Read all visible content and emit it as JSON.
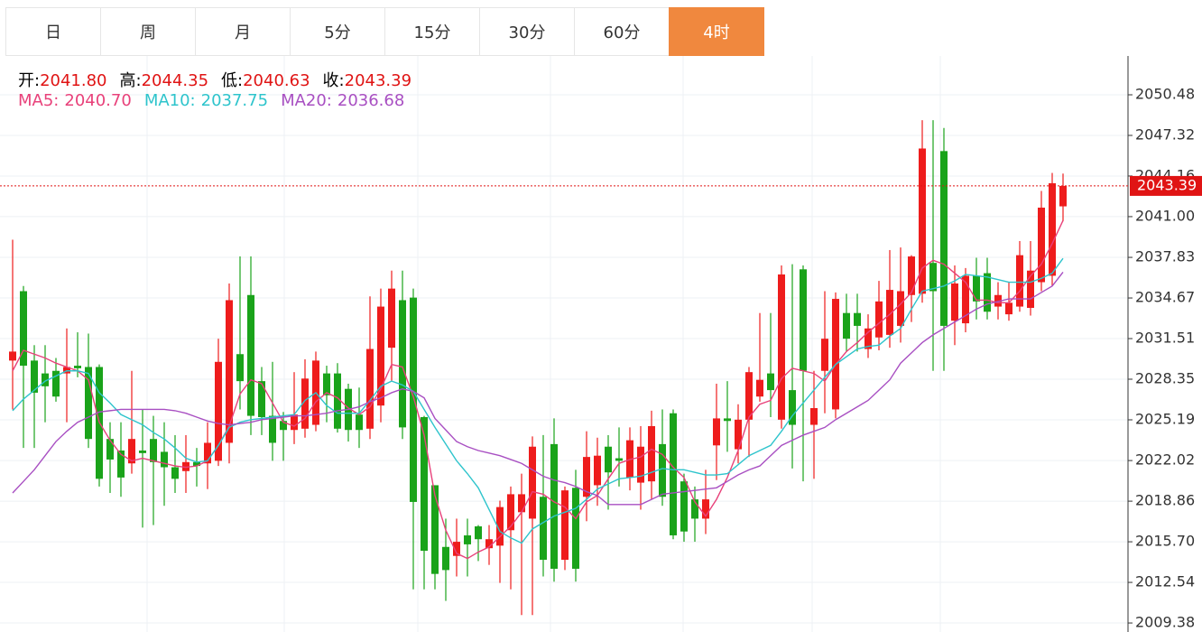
{
  "tabs": {
    "items": [
      "日",
      "周",
      "月",
      "5分",
      "15分",
      "30分",
      "60分",
      "4时"
    ],
    "active": 7
  },
  "chart_data": {
    "type": "candlestick",
    "info": [
      {
        "label": "开:",
        "value": "2041.80"
      },
      {
        "label": "高:",
        "value": "2044.35"
      },
      {
        "label": "低:",
        "value": "2040.63"
      },
      {
        "label": "收:",
        "value": "2043.39"
      }
    ],
    "up_color": "#ee1c1c",
    "down_color": "#1aa31a",
    "open": [
      2029.8,
      2035.2,
      2029.8,
      2028.8,
      2029,
      2028.8,
      2029.4,
      2029.3,
      2029.3,
      2023.7,
      2022.8,
      2021.8,
      2022.8,
      2023.7,
      2022.7,
      2021.5,
      2021.2,
      2021.9,
      2021.8,
      2022.0,
      2023.4,
      2030.3,
      2034.9,
      2028.2,
      2025.5,
      2025.1,
      2024.4,
      2024.5,
      2024.8,
      2028.8,
      2028.8,
      2027.6,
      2025.6,
      2024.5,
      2026.3,
      2030.8,
      2034.5,
      2034.7,
      2025.4,
      2020.1,
      2015.3,
      2014.6,
      2016.2,
      2016.9,
      2015.2,
      2015.4,
      2016.6,
      2018.0,
      2017.5,
      2019.2,
      2023.3,
      2014.3,
      2019.9,
      2019.2,
      2020.1,
      2023.1,
      2022.2,
      2020.7,
      2020.3,
      2020.4,
      2023.3,
      2025.7,
      2020.4,
      2019.0,
      2017.5,
      2023.2,
      2025.3,
      2022.9,
      2025.2,
      2027.0,
      2028.8,
      2025.2,
      2027.5,
      2036.9,
      2024.8,
      2029.0,
      2026.0,
      2033.5,
      2033.5,
      2030.7,
      2031.6,
      2031.8,
      2032.5,
      2034.9,
      2035.0,
      2037.4,
      2046.1,
      2032.9,
      2032.7,
      2036.4,
      2036.6,
      2034.0,
      2033.4,
      2034.0,
      2033.9,
      2035.9,
      2036.4,
      2041.8
    ],
    "high": [
      2039.2,
      2035.6,
      2031,
      2031,
      2030,
      2032.3,
      2032,
      2031.9,
      2029.5,
      2025,
      2025,
      2029,
      2026,
      2025.5,
      2025,
      2024,
      2024,
      2023,
      2025,
      2031.5,
      2035.8,
      2037.9,
      2037.9,
      2029.3,
      2029.7,
      2025.8,
      2028.9,
      2029.9,
      2030.5,
      2029.4,
      2029.6,
      2028,
      2027.7,
      2034.8,
      2035.4,
      2036.8,
      2036.8,
      2035.4,
      2025.5,
      2020.1,
      2017.5,
      2017.5,
      2017.5,
      2017,
      2017,
      2018.9,
      2020,
      2021,
      2023.9,
      2024,
      2025.3,
      2020,
      2021.3,
      2024.3,
      2023.8,
      2024,
      2024.6,
      2024.6,
      2024.7,
      2025.9,
      2026,
      2026,
      2021,
      2020,
      2021.3,
      2028,
      2028.2,
      2026.4,
      2029.3,
      2033.5,
      2033.5,
      2037.2,
      2037.3,
      2037.2,
      2029,
      2035.2,
      2035.1,
      2035,
      2035,
      2033.4,
      2036,
      2038.4,
      2038.6,
      2038,
      2048.5,
      2048.5,
      2047.9,
      2037.2,
      2037,
      2037.8,
      2037.8,
      2035.9,
      2035.9,
      2039.1,
      2039.1,
      2043.0,
      2044.4,
      2044.35
    ],
    "low": [
      2026,
      2023,
      2023,
      2025,
      2026.6,
      2025,
      2028.5,
      2023,
      2020,
      2019.5,
      2019.2,
      2021,
      2016.8,
      2017,
      2018.5,
      2019.5,
      2019.5,
      2020,
      2019.8,
      2021.6,
      2021.8,
      2026,
      2024,
      2024,
      2022,
      2022,
      2023.3,
      2023.8,
      2024.3,
      2025,
      2024.2,
      2023.5,
      2023,
      2023.7,
      2025,
      2028.2,
      2023.7,
      2012,
      2012,
      2012,
      2011.1,
      2013,
      2013,
      2014.2,
      2013.9,
      2012.5,
      2012,
      2010,
      2010,
      2013,
      2012.6,
      2013.5,
      2012.6,
      2017.3,
      2018.5,
      2018.2,
      2020,
      2019.7,
      2018.2,
      2019,
      2018.5,
      2015.9,
      2015.7,
      2015.7,
      2016.3,
      2020.5,
      2022.7,
      2021.8,
      2022.3,
      2026.6,
      2025.4,
      2024.5,
      2021.4,
      2020.4,
      2020.6,
      2025.7,
      2025.3,
      2030.5,
      2030.5,
      2030,
      2030.6,
      2030.8,
      2031.2,
      2032.8,
      2034.3,
      2029,
      2029,
      2031,
      2032,
      2033,
      2033,
      2033,
      2032.9,
      2033.6,
      2033.3,
      2035.2,
      2035.6,
      2040.63
    ],
    "close": [
      2030.5,
      2029.4,
      2027.3,
      2027.8,
      2027,
      2029.3,
      2029.2,
      2023.7,
      2020.6,
      2022.1,
      2020.7,
      2023.7,
      2022.6,
      2021.9,
      2021.5,
      2020.6,
      2021.9,
      2021.6,
      2023.4,
      2029.7,
      2034.5,
      2028.2,
      2025.5,
      2025.4,
      2023.4,
      2024.4,
      2025.6,
      2028.4,
      2029.8,
      2027.1,
      2024.5,
      2024.4,
      2024.4,
      2030.7,
      2034.0,
      2035.4,
      2024.6,
      2018.8,
      2015.0,
      2013.2,
      2013.5,
      2015.7,
      2015.5,
      2015.9,
      2015.9,
      2018.4,
      2019.4,
      2019.4,
      2023.1,
      2014.3,
      2013.6,
      2019.7,
      2013.6,
      2022.3,
      2022.4,
      2021.1,
      2022.0,
      2023.6,
      2023.1,
      2024.7,
      2019.2,
      2016.2,
      2016.5,
      2017.5,
      2019.0,
      2025.3,
      2025.1,
      2025.2,
      2028.9,
      2028.3,
      2027.5,
      2036.5,
      2024.8,
      2029.0,
      2026.1,
      2031.5,
      2034.6,
      2031.5,
      2032.5,
      2032.3,
      2034.4,
      2035.3,
      2035.2,
      2037.9,
      2046.3,
      2035.2,
      2032.5,
      2035.8,
      2036.4,
      2034.4,
      2033.6,
      2034.9,
      2034.3,
      2038.0,
      2036.8,
      2041.7,
      2043.6,
      2043.39
    ],
    "series": [
      {
        "name": "MA5:",
        "value_label": "2040.70",
        "color": "#e8417a",
        "values": [
          2029.0,
          2030.6,
          2030.3,
          2030.0,
          2029.6,
          2029.3,
          2029.0,
          2028.3,
          2025.0,
          2023.6,
          2022.5,
          2022.0,
          2022.2,
          2022.0,
          2021.8,
          2021.6,
          2021.5,
          2021.6,
          2022.0,
          2023.2,
          2024.7,
          2027.2,
          2028.3,
          2028.0,
          2026.5,
          2025.0,
          2024.7,
          2025.3,
          2026.6,
          2027.3,
          2026.9,
          2026.1,
          2025.6,
          2026.2,
          2027.6,
          2029.5,
          2029.3,
          2027.0,
          2024.0,
          2019.3,
          2016.6,
          2014.8,
          2014.4,
          2014.9,
          2015.3,
          2016.1,
          2016.9,
          2018.0,
          2019.6,
          2019.4,
          2018.8,
          2018.4,
          2017.5,
          2018.8,
          2019.3,
          2020.6,
          2021.8,
          2022.1,
          2022.3,
          2022.9,
          2022.5,
          2021.5,
          2020.7,
          2018.8,
          2017.7,
          2019.0,
          2020.7,
          2022.8,
          2025.4,
          2026.4,
          2026.7,
          2028.4,
          2029.2,
          2029.0,
          2028.8,
          2028.2,
          2029.5,
          2030.5,
          2031.2,
          2032.0,
          2032.7,
          2033.4,
          2034.2,
          2035.1,
          2037.0,
          2037.6,
          2037.3,
          2036.6,
          2035.9,
          2034.5,
          2034.5,
          2034.3,
          2034.3,
          2035.2,
          2036.4,
          2037.3,
          2038.9,
          2040.7
        ]
      },
      {
        "name": "MA10:",
        "value_label": "2037.75",
        "color": "#2ec4cc",
        "values": [
          2025.9,
          2026.8,
          2027.5,
          2028.2,
          2028.6,
          2029.0,
          2029.0,
          2028.8,
          2027.3,
          2026.5,
          2025.6,
          2025.2,
          2024.8,
          2024.2,
          2023.7,
          2023.0,
          2022.2,
          2021.9,
          2022.0,
          2023.2,
          2024.6,
          2025.0,
          2025.2,
          2025.3,
          2025.4,
          2025.5,
          2025.6,
          2026.7,
          2027.3,
          2026.3,
          2025.7,
          2025.7,
          2025.7,
          2026.7,
          2027.8,
          2028.2,
          2027.9,
          2027.4,
          2026.0,
          2024.6,
          2023.3,
          2022.0,
          2021.0,
          2019.9,
          2018.2,
          2016.5,
          2016.0,
          2015.6,
          2016.7,
          2017.2,
          2017.7,
          2018.0,
          2018.3,
          2019.0,
          2019.8,
          2020.2,
          2020.6,
          2020.7,
          2020.8,
          2021.1,
          2021.4,
          2021.3,
          2021.3,
          2021.1,
          2020.9,
          2020.9,
          2021.0,
          2021.7,
          2022.4,
          2022.8,
          2023.2,
          2024.3,
          2025.5,
          2026.5,
          2027.5,
          2028.5,
          2029.5,
          2030.1,
          2030.7,
          2030.9,
          2031.0,
          2031.7,
          2032.3,
          2033.8,
          2035.2,
          2035.4,
          2035.6,
          2036.0,
          2036.5,
          2036.4,
          2036.3,
          2036.1,
          2035.9,
          2035.9,
          2035.9,
          2036.2,
          2036.6,
          2037.75
        ]
      },
      {
        "name": "MA20:",
        "value_label": "2036.68",
        "color": "#a84fc2",
        "values": [
          2019.5,
          2020.4,
          2021.3,
          2022.4,
          2023.5,
          2024.3,
          2025.0,
          2025.4,
          2025.8,
          2025.9,
          2026.0,
          2026.0,
          2026.0,
          2026.0,
          2026.0,
          2025.9,
          2025.7,
          2025.4,
          2025.1,
          2024.9,
          2024.8,
          2024.9,
          2025.0,
          2025.2,
          2025.3,
          2025.4,
          2025.5,
          2025.5,
          2025.6,
          2025.7,
          2025.9,
          2026.0,
          2026.2,
          2026.6,
          2026.9,
          2027.3,
          2027.6,
          2027.4,
          2026.9,
          2025.3,
          2024.4,
          2023.5,
          2023.1,
          2022.8,
          2022.6,
          2022.4,
          2022.1,
          2021.8,
          2021.3,
          2020.8,
          2020.5,
          2020.3,
          2020.0,
          2019.6,
          2019.3,
          2018.6,
          2018.6,
          2018.6,
          2018.6,
          2019.0,
          2019.4,
          2019.5,
          2019.6,
          2019.7,
          2019.8,
          2019.9,
          2020.4,
          2020.9,
          2021.3,
          2021.6,
          2022.4,
          2023.2,
          2023.6,
          2024.0,
          2024.3,
          2024.6,
          2025.2,
          2025.7,
          2026.2,
          2026.7,
          2027.5,
          2028.3,
          2029.6,
          2030.4,
          2031.2,
          2031.8,
          2032.3,
          2032.8,
          2033.3,
          2033.8,
          2034.2,
          2034.4,
          2034.6,
          2034.6,
          2034.6,
          2035.1,
          2035.6,
          2036.68
        ]
      }
    ],
    "last_price": {
      "value": 2043.39,
      "label": "2043.39"
    },
    "ylim": [
      2008.68,
      2053.5
    ],
    "yticks": [
      2050.48,
      2047.32,
      2044.16,
      {
        "value": 2041,
        "label": "2041.00"
      },
      2037.83,
      2034.67,
      2031.51,
      2028.35,
      2025.19,
      2022.02,
      2018.86,
      {
        "value": 2015.7,
        "label": "2015.70"
      },
      2012.54,
      2009.38
    ],
    "grid": true
  }
}
